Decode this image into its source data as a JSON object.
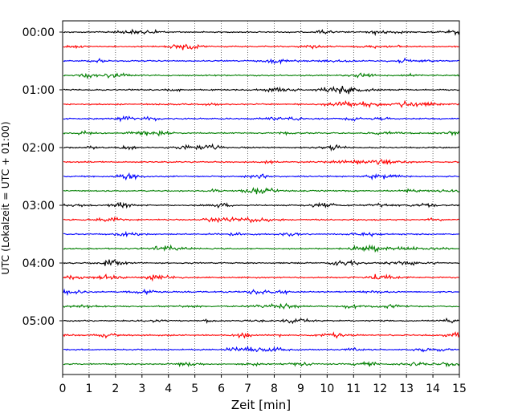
{
  "chart_data": {
    "type": "line",
    "title": "",
    "xlabel": "Zeit  [min]",
    "ylabel": "UTC (Lokalzeit = UTC + 01:00)",
    "xlim": [
      0,
      15
    ],
    "x_ticks": [
      "0",
      "1",
      "2",
      "3",
      "4",
      "5",
      "6",
      "7",
      "8",
      "9",
      "10",
      "11",
      "12",
      "13",
      "14",
      "15"
    ],
    "y_ticks": [
      "00:00",
      "01:00",
      "02:00",
      "03:00",
      "04:00",
      "05:00"
    ],
    "grid": "vertical dotted lines at each minute",
    "trace_interval_minutes": 15,
    "trace_count": 24,
    "trace_color_cycle": [
      "#000000",
      "#ff0000",
      "#0000ff",
      "#007f00"
    ],
    "series_description": "Seismogram helicorder traces, one per 15-minute window from 00:00 to 05:45 UTC, low-amplitude noise"
  }
}
